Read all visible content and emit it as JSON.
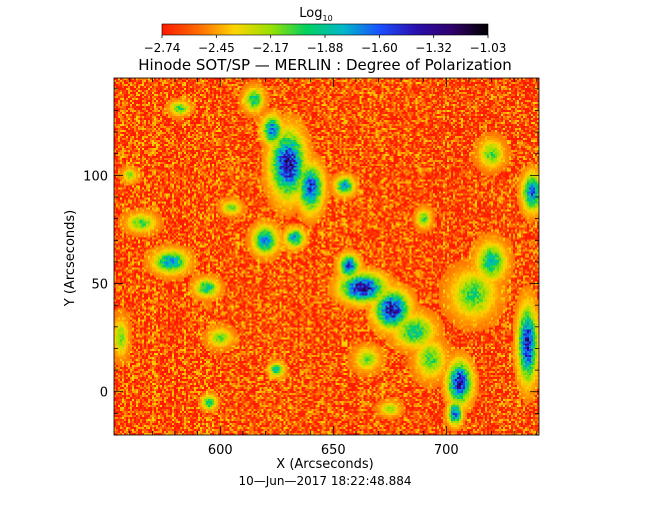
{
  "chart_data": {
    "type": "heatmap",
    "title": "Hinode SOT/SP — MERLIN : Degree of Polarization",
    "xlabel": "X (Arcseconds)",
    "ylabel": "Y (Arcseconds)",
    "timestamp": "10—Jun—2017 18:22:48.884",
    "xlim": [
      553,
      741
    ],
    "ylim": [
      -20,
      145
    ],
    "xticks": [
      600,
      650,
      700
    ],
    "yticks": [
      0,
      50,
      100
    ],
    "colorbar": {
      "label": "Log",
      "label_subscript": "10",
      "ticks": [
        "−2.74",
        "−2.45",
        "−2.17",
        "−1.88",
        "−1.60",
        "−1.32",
        "−1.03"
      ],
      "range": [
        -2.74,
        -1.03
      ],
      "colormap": [
        "#ff1a00",
        "#ff6a00",
        "#ffd400",
        "#9ae000",
        "#00d060",
        "#00b8c8",
        "#1a50ff",
        "#2a10b0",
        "#30006a",
        "#000000"
      ]
    },
    "regions": [
      {
        "x": 630,
        "y": 105,
        "rx": 7,
        "ry": 14,
        "level": -1.35
      },
      {
        "x": 640,
        "y": 94,
        "rx": 5,
        "ry": 10,
        "level": -1.5
      },
      {
        "x": 623,
        "y": 121,
        "rx": 4,
        "ry": 6,
        "level": -1.6
      },
      {
        "x": 663,
        "y": 48,
        "rx": 9,
        "ry": 6,
        "level": -1.3
      },
      {
        "x": 676,
        "y": 38,
        "rx": 7,
        "ry": 8,
        "level": -1.35
      },
      {
        "x": 657,
        "y": 58,
        "rx": 4,
        "ry": 5,
        "level": -1.55
      },
      {
        "x": 686,
        "y": 28,
        "rx": 8,
        "ry": 7,
        "level": -1.9
      },
      {
        "x": 706,
        "y": 4,
        "rx": 5,
        "ry": 9,
        "level": -1.4
      },
      {
        "x": 704,
        "y": -10,
        "rx": 3,
        "ry": 5,
        "level": -1.6
      },
      {
        "x": 720,
        "y": 60,
        "rx": 6,
        "ry": 8,
        "level": -1.85
      },
      {
        "x": 736,
        "y": 22,
        "rx": 4,
        "ry": 16,
        "level": -1.4
      },
      {
        "x": 712,
        "y": 45,
        "rx": 9,
        "ry": 10,
        "level": -2.0
      },
      {
        "x": 693,
        "y": 15,
        "rx": 6,
        "ry": 8,
        "level": -2.0
      },
      {
        "x": 578,
        "y": 60,
        "rx": 7,
        "ry": 5,
        "level": -1.75
      },
      {
        "x": 594,
        "y": 48,
        "rx": 5,
        "ry": 4,
        "level": -1.9
      },
      {
        "x": 620,
        "y": 70,
        "rx": 5,
        "ry": 6,
        "level": -1.7
      },
      {
        "x": 633,
        "y": 71,
        "rx": 4,
        "ry": 4,
        "level": -1.75
      },
      {
        "x": 565,
        "y": 78,
        "rx": 6,
        "ry": 4,
        "level": -2.05
      },
      {
        "x": 556,
        "y": 25,
        "rx": 3,
        "ry": 8,
        "level": -2.1
      },
      {
        "x": 600,
        "y": 25,
        "rx": 5,
        "ry": 4,
        "level": -2.1
      },
      {
        "x": 582,
        "y": 131,
        "rx": 4,
        "ry": 3,
        "level": -2.0
      },
      {
        "x": 615,
        "y": 135,
        "rx": 4,
        "ry": 5,
        "level": -1.9
      },
      {
        "x": 720,
        "y": 110,
        "rx": 5,
        "ry": 6,
        "level": -2.05
      },
      {
        "x": 738,
        "y": 92,
        "rx": 4,
        "ry": 8,
        "level": -1.6
      },
      {
        "x": 655,
        "y": 95,
        "rx": 4,
        "ry": 4,
        "level": -1.75
      },
      {
        "x": 605,
        "y": 85,
        "rx": 4,
        "ry": 3,
        "level": -2.1
      },
      {
        "x": 665,
        "y": 15,
        "rx": 5,
        "ry": 5,
        "level": -2.1
      },
      {
        "x": 675,
        "y": -8,
        "rx": 4,
        "ry": 3,
        "level": -2.15
      },
      {
        "x": 625,
        "y": 10,
        "rx": 3,
        "ry": 3,
        "level": -1.85
      },
      {
        "x": 560,
        "y": 100,
        "rx": 3,
        "ry": 3,
        "level": -2.15
      },
      {
        "x": 690,
        "y": 80,
        "rx": 3,
        "ry": 4,
        "level": -2.05
      },
      {
        "x": 595,
        "y": -5,
        "rx": 3,
        "ry": 3,
        "level": -1.9
      }
    ]
  }
}
